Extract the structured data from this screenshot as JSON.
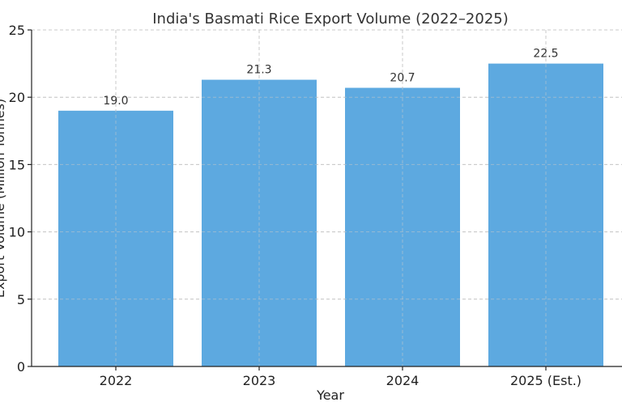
{
  "chart_data": {
    "type": "bar",
    "title": "India's Basmati Rice Export Volume (2022–2025)",
    "xlabel": "Year",
    "ylabel": "Export Volume (Million Tonnes)",
    "categories": [
      "2022",
      "2023",
      "2024",
      "2025 (Est.)"
    ],
    "values": [
      19.0,
      21.3,
      20.7,
      22.5
    ],
    "data_labels": [
      "19.0",
      "21.3",
      "20.7",
      "22.5"
    ],
    "ylim": [
      0,
      25
    ],
    "yticks": [
      0,
      5,
      10,
      15,
      20,
      25
    ],
    "ytick_labels": [
      "0",
      "5",
      "10",
      "15",
      "20",
      "25"
    ],
    "grid": true,
    "bar_color": "#5DA9E0"
  }
}
